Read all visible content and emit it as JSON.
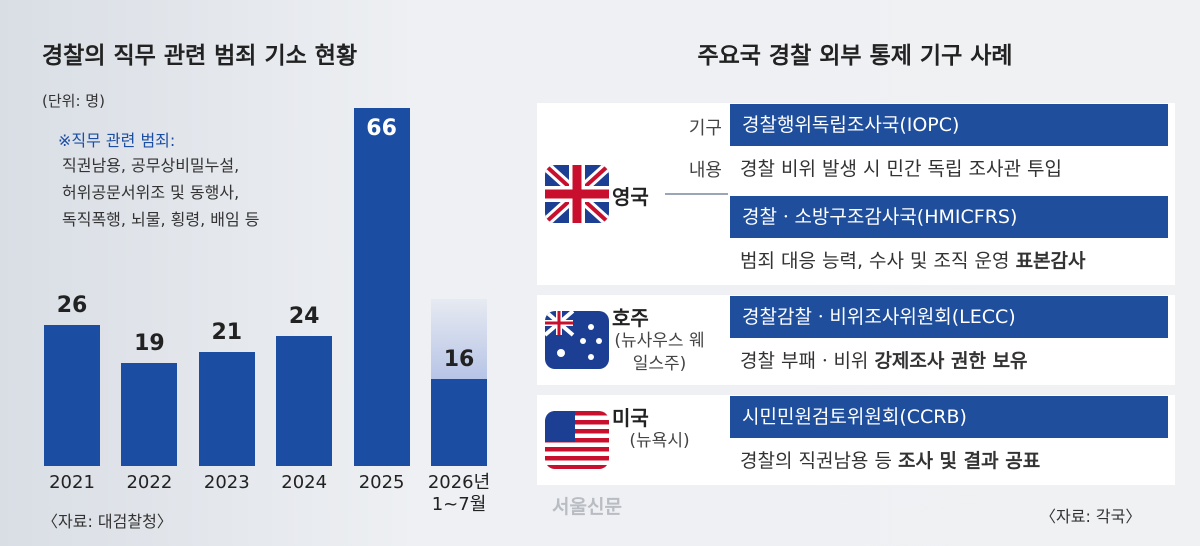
{
  "chart_data": {
    "type": "bar",
    "title": "경찰의 직무 관련 범죄 기소 현황",
    "unit": "(단위: 명)",
    "note_title": "※직무 관련 범죄:",
    "note_lines": [
      "직권남용, 공무상비밀누설,",
      "허위공문서위조 및 동행사,",
      "독직폭행, 뇌물, 횡령, 배임 등"
    ],
    "categories": [
      "2021",
      "2022",
      "2023",
      "2024",
      "2025",
      "2026년\n1~7월"
    ],
    "values": [
      26,
      19,
      21,
      24,
      66,
      16
    ],
    "color": "#1b4ea3",
    "source": "〈자료: 대검찰청〉"
  },
  "panel": {
    "title": "주요국 경찰 외부 통제 기구 사례",
    "row_labels": [
      "기구",
      "내용"
    ],
    "countries": [
      {
        "name": "영국",
        "bodies": [
          {
            "name": "경찰행위독립조사국(IOPC)",
            "description": [
              "경찰 비위 발생 시 민간 독립 조사관 투입"
            ]
          },
          {
            "name": "경찰ㆍ소방구조감사국(HMICFRS)",
            "description": [
              "범죄 대응 능력, 수사 및 조직 운영 ",
              "표본감사"
            ]
          }
        ]
      },
      {
        "name": "호주",
        "sub": "(뉴사우스 웨일스주)",
        "bodies": [
          {
            "name": "경찰감찰ㆍ비위조사위원회(LECC)",
            "description": [
              "경찰 부패ㆍ비위 ",
              "강제조사 권한 보유"
            ]
          }
        ]
      },
      {
        "name": "미국",
        "sub": "(뉴욕시)",
        "bodies": [
          {
            "name": "시민민원검토위원회(CCRB)",
            "description": [
              "경찰의 직권남용 등 ",
              "조사 및 결과 공표"
            ]
          }
        ]
      }
    ],
    "source": "〈자료: 각국〉"
  },
  "watermark": "서울신문"
}
